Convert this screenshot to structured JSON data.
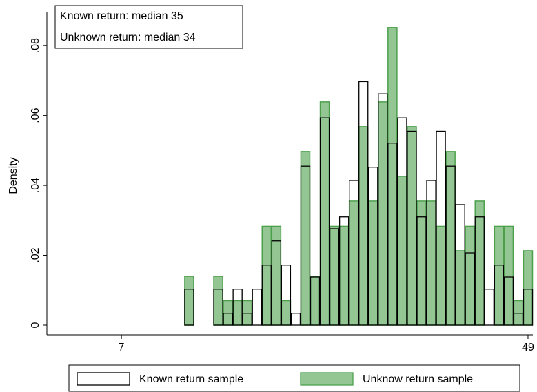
{
  "chart_data": {
    "type": "histogram",
    "annotations": [
      "Known return: median 35",
      "Unknown return: median 34"
    ],
    "ylabel": "Density",
    "bins": [
      13.5,
      14.5,
      15.5,
      16.5,
      17.5,
      18.5,
      19.5,
      20.5,
      21.5,
      22.5,
      23.5,
      24.5,
      25.5,
      26.5,
      27.5,
      28.5,
      29.5,
      30.5,
      31.5,
      32.5,
      33.5,
      34.5,
      35.5,
      36.5,
      37.5,
      38.5,
      39.5,
      40.5,
      41.5,
      42.5,
      43.5,
      44.5,
      45.5,
      46.5,
      47.5,
      48.5,
      49.5
    ],
    "series": [
      {
        "name": "Unknow return sample",
        "color": "#4ca04c",
        "values": [
          0.014,
          0,
          0,
          0.014,
          0.007,
          0.007,
          0.007,
          0,
          0.0283,
          0.0283,
          0.007,
          0,
          0.0497,
          0.014,
          0.0639,
          0.0283,
          0.0283,
          0.0355,
          0.0568,
          0.0355,
          0.0639,
          0.0852,
          0.0426,
          0.0568,
          0.0355,
          0.0355,
          0.0283,
          0.0497,
          0.0213,
          0.0283,
          0.0355,
          0,
          0.0283,
          0.0283,
          0.007,
          0.0213
        ]
      },
      {
        "name": "Known return sample",
        "color": "#000000",
        "values": [
          0.0103,
          0,
          0,
          0.0103,
          0.0034,
          0.0103,
          0.0034,
          0.0103,
          0.0172,
          0.0241,
          0.0172,
          0.0034,
          0.0455,
          0.0138,
          0.0593,
          0.0276,
          0.031,
          0.0414,
          0.0697,
          0.0452,
          0.0662,
          0.0521,
          0.0593,
          0.0555,
          0.031,
          0.0414,
          0.0555,
          0.0455,
          0.0345,
          0.0207,
          0.031,
          0.0103,
          0.0172,
          0.0138,
          0.0034,
          0.0103
        ]
      }
    ],
    "xlim": [
      -0.7,
      49.5
    ],
    "xticks": [
      7,
      49
    ],
    "ylim": [
      0,
      0.0895
    ],
    "yticks": [
      0,
      {
        "value": 0.02,
        "label": ".02"
      },
      {
        "value": 0.04,
        "label": ".04"
      },
      {
        "value": 0.06,
        "label": ".06"
      },
      {
        "value": 0.08,
        "label": ".08"
      }
    ]
  }
}
